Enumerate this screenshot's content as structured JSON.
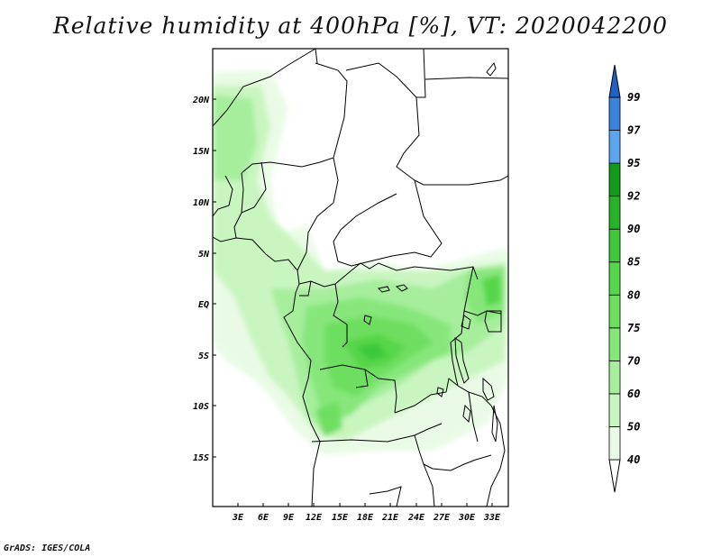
{
  "title": "Relative humidity at 400hPa [%], VT: 2020042200",
  "credit": "GrADS: IGES/COLA",
  "map": {
    "lat_ticks": [
      "20N",
      "15N",
      "10N",
      "5N",
      "EQ",
      "5S",
      "10S",
      "15S"
    ],
    "lon_ticks": [
      "3E",
      "6E",
      "9E",
      "12E",
      "15E",
      "18E",
      "21E",
      "24E",
      "27E",
      "30E",
      "33E"
    ]
  },
  "colorbar": {
    "levels": [
      "40",
      "50",
      "60",
      "70",
      "75",
      "80",
      "85",
      "90",
      "92",
      "95",
      "97",
      "99"
    ],
    "colors": [
      "#e9fbe5",
      "#c9f5c0",
      "#a6ee9c",
      "#86e67a",
      "#6ede60",
      "#56d64a",
      "#3ec83a",
      "#28b22a",
      "#139a18",
      "#5aa5ee",
      "#3b84de",
      "#1e62c8"
    ]
  }
}
